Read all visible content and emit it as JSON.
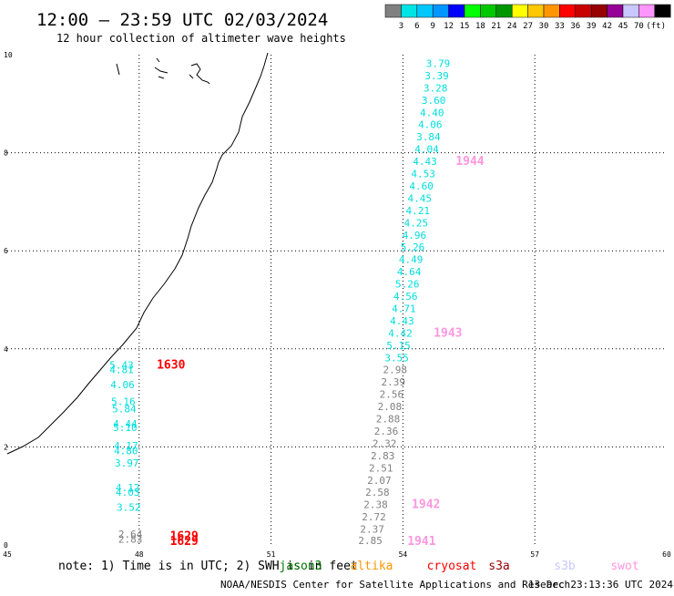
{
  "header": {
    "title": "12:00 – 23:59 UTC 02/03/2024",
    "subtitle": "12 hour collection of altimeter wave heights"
  },
  "legend": {
    "unit": "(ft)",
    "swatches": [
      {
        "color": "#808080",
        "label": ""
      },
      {
        "color": "#00e4e4",
        "label": "3"
      },
      {
        "color": "#00c8ff",
        "label": "6"
      },
      {
        "color": "#0096ff",
        "label": "9"
      },
      {
        "color": "#0000ff",
        "label": "12"
      },
      {
        "color": "#00ff00",
        "label": "15"
      },
      {
        "color": "#00c800",
        "label": "18"
      },
      {
        "color": "#009600",
        "label": "21"
      },
      {
        "color": "#ffff00",
        "label": "24"
      },
      {
        "color": "#ffc800",
        "label": "27"
      },
      {
        "color": "#ff9600",
        "label": "30"
      },
      {
        "color": "#ff0000",
        "label": "33"
      },
      {
        "color": "#c80000",
        "label": "36"
      },
      {
        "color": "#960000",
        "label": "39"
      },
      {
        "color": "#960096",
        "label": "42"
      },
      {
        "color": "#c8c8ff",
        "label": "45"
      },
      {
        "color": "#ff96ff",
        "label": "70"
      },
      {
        "color": "#000000",
        "label": ""
      }
    ]
  },
  "axes": {
    "lon": {
      "min": 45,
      "max": 60,
      "ticks": [
        "45",
        "48",
        "51",
        "54",
        "57",
        "60"
      ]
    },
    "lat": {
      "min": 0,
      "max": 10,
      "ticks": [
        "0",
        "2",
        "4",
        "6",
        "8",
        "10"
      ]
    }
  },
  "tracks": [
    {
      "color": "#00dede",
      "points": [
        {
          "lon": 54.8,
          "lat": 9.75,
          "v": "3.79"
        },
        {
          "lon": 54.77,
          "lat": 9.5,
          "v": "3.39"
        },
        {
          "lon": 54.74,
          "lat": 9.25,
          "v": "3.28"
        },
        {
          "lon": 54.7,
          "lat": 9.0,
          "v": "3.60"
        },
        {
          "lon": 54.66,
          "lat": 8.75,
          "v": "4.40"
        },
        {
          "lon": 54.62,
          "lat": 8.5,
          "v": "4.06"
        },
        {
          "lon": 54.58,
          "lat": 8.25,
          "v": "3.84"
        },
        {
          "lon": 54.54,
          "lat": 8.0,
          "v": "4.04"
        },
        {
          "lon": 54.5,
          "lat": 7.75,
          "v": "4.43"
        },
        {
          "lon": 54.46,
          "lat": 7.5,
          "v": "4.53"
        },
        {
          "lon": 54.42,
          "lat": 7.25,
          "v": "4.60"
        },
        {
          "lon": 54.38,
          "lat": 7.0,
          "v": "4.45"
        },
        {
          "lon": 54.34,
          "lat": 6.75,
          "v": "4.21"
        },
        {
          "lon": 54.3,
          "lat": 6.5,
          "v": "4.25"
        },
        {
          "lon": 54.26,
          "lat": 6.25,
          "v": "4.96"
        },
        {
          "lon": 54.22,
          "lat": 6.0,
          "v": "5.26"
        },
        {
          "lon": 54.18,
          "lat": 5.75,
          "v": "4.49"
        },
        {
          "lon": 54.14,
          "lat": 5.5,
          "v": "4.64"
        },
        {
          "lon": 54.1,
          "lat": 5.25,
          "v": "5.26"
        },
        {
          "lon": 54.06,
          "lat": 5.0,
          "v": "4.56"
        },
        {
          "lon": 54.02,
          "lat": 4.75,
          "v": "4.71"
        },
        {
          "lon": 53.98,
          "lat": 4.5,
          "v": "4.43"
        },
        {
          "lon": 53.94,
          "lat": 4.25,
          "v": "4.42"
        },
        {
          "lon": 53.9,
          "lat": 4.0,
          "v": "5.15"
        },
        {
          "lon": 53.86,
          "lat": 3.75,
          "v": "3.55"
        }
      ]
    },
    {
      "color": "#808080",
      "points": [
        {
          "lon": 53.82,
          "lat": 3.5,
          "v": "2.98"
        },
        {
          "lon": 53.78,
          "lat": 3.25,
          "v": "2.39"
        },
        {
          "lon": 53.74,
          "lat": 3.0,
          "v": "2.56"
        },
        {
          "lon": 53.7,
          "lat": 2.75,
          "v": "2.08"
        },
        {
          "lon": 53.66,
          "lat": 2.5,
          "v": "2.88"
        },
        {
          "lon": 53.62,
          "lat": 2.25,
          "v": "2.36"
        },
        {
          "lon": 53.58,
          "lat": 2.0,
          "v": "2.32"
        },
        {
          "lon": 53.54,
          "lat": 1.75,
          "v": "2.83"
        },
        {
          "lon": 53.5,
          "lat": 1.5,
          "v": "2.51"
        },
        {
          "lon": 53.46,
          "lat": 1.25,
          "v": "2.07"
        },
        {
          "lon": 53.42,
          "lat": 1.0,
          "v": "2.58"
        },
        {
          "lon": 53.38,
          "lat": 0.75,
          "v": "2.38"
        },
        {
          "lon": 53.34,
          "lat": 0.5,
          "v": "2.72"
        },
        {
          "lon": 53.3,
          "lat": 0.25,
          "v": "2.37"
        },
        {
          "lon": 53.26,
          "lat": 0.02,
          "v": "2.85"
        }
      ]
    },
    {
      "color": "#00dede",
      "points": [
        {
          "lon": 47.6,
          "lat": 3.6,
          "v": "5.43"
        },
        {
          "lon": 47.6,
          "lat": 3.5,
          "v": "4.81"
        },
        {
          "lon": 47.62,
          "lat": 3.2,
          "v": "4.06"
        },
        {
          "lon": 47.64,
          "lat": 2.85,
          "v": "5.16"
        },
        {
          "lon": 47.66,
          "lat": 2.7,
          "v": "5.84"
        },
        {
          "lon": 47.68,
          "lat": 2.4,
          "v": "4.44"
        },
        {
          "lon": 47.68,
          "lat": 2.32,
          "v": "5.10"
        },
        {
          "lon": 47.7,
          "lat": 1.95,
          "v": "4.17"
        },
        {
          "lon": 47.7,
          "lat": 1.85,
          "v": "4.80"
        },
        {
          "lon": 47.72,
          "lat": 1.6,
          "v": "3.97"
        },
        {
          "lon": 47.74,
          "lat": 1.1,
          "v": "4.12"
        },
        {
          "lon": 47.74,
          "lat": 1.0,
          "v": "4.03"
        },
        {
          "lon": 47.76,
          "lat": 0.7,
          "v": "3.52"
        }
      ]
    },
    {
      "color": "#808080",
      "points": [
        {
          "lon": 47.8,
          "lat": 0.15,
          "v": "2.64"
        },
        {
          "lon": 47.8,
          "lat": 0.05,
          "v": "2.83"
        }
      ]
    }
  ],
  "time_labels": [
    {
      "lon": 48.4,
      "lat": 3.6,
      "text": "1630",
      "color": "#ff0000"
    },
    {
      "lon": 48.7,
      "lat": 0.1,
      "text": "1629",
      "color": "#ff0000"
    },
    {
      "lon": 48.7,
      "lat": 0.0,
      "text": "1629",
      "color": "#ff0000"
    },
    {
      "lon": 55.2,
      "lat": 7.75,
      "text": "1944",
      "color": "#ff96e0"
    },
    {
      "lon": 54.7,
      "lat": 4.25,
      "text": "1943",
      "color": "#ff96e0"
    },
    {
      "lon": 54.2,
      "lat": 0.75,
      "text": "1942",
      "color": "#ff96e0"
    },
    {
      "lon": 54.1,
      "lat": 0.0,
      "text": "1941",
      "color": "#ff96e0"
    }
  ],
  "footer": {
    "note": "note: 1) Time is in UTC; 2) SWH is in feet",
    "satellites": [
      {
        "name": "jason3",
        "color": "#007700"
      },
      {
        "name": "altika",
        "color": "#ff9600"
      },
      {
        "name": "cryosat",
        "color": "#ff0000"
      },
      {
        "name": "s3a",
        "color": "#990000"
      },
      {
        "name": "s3b",
        "color": "#c8c8ff"
      },
      {
        "name": "swot",
        "color": "#ff96e0"
      }
    ],
    "credit": "NOAA/NESDIS Center for Satellite Applications and Research",
    "generated": "13 Dec 23:13:36 UTC 2024"
  }
}
